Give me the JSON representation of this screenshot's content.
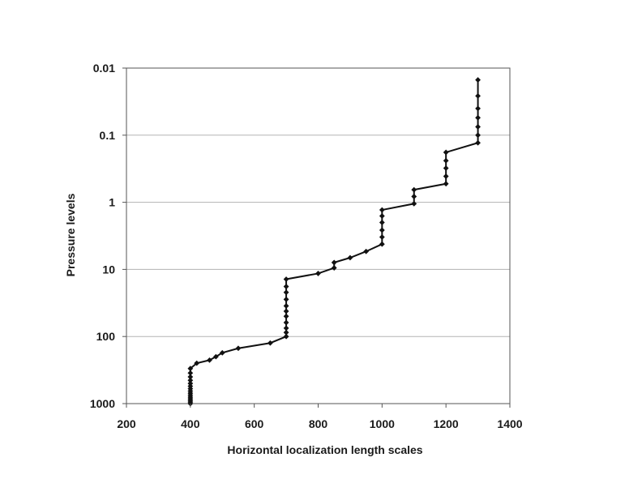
{
  "chart_data": {
    "type": "line",
    "title": "",
    "xlabel": "Horizontal localization length scales",
    "ylabel": "Pressure levels",
    "xlim": [
      200,
      1400
    ],
    "ylim": [
      1000,
      0.01
    ],
    "y_scale": "log",
    "y_inverted": true,
    "grid": "horizontal",
    "legend": "none",
    "x_ticks": [
      "200",
      "400",
      "600",
      "800",
      "1000",
      "1200",
      "1400"
    ],
    "y_ticks": [
      "0.01",
      "0.1",
      "1",
      "10",
      "100",
      "1000"
    ],
    "series": [
      {
        "color": "#111111",
        "marker": "diamond",
        "points": [
          [
            400,
            1000
          ],
          [
            400,
            950
          ],
          [
            400,
            900
          ],
          [
            400,
            850
          ],
          [
            400,
            800
          ],
          [
            400,
            750
          ],
          [
            400,
            700
          ],
          [
            400,
            650
          ],
          [
            400,
            600
          ],
          [
            400,
            550
          ],
          [
            400,
            500
          ],
          [
            400,
            450
          ],
          [
            400,
            400
          ],
          [
            400,
            350
          ],
          [
            400,
            300
          ],
          [
            420,
            250
          ],
          [
            460,
            225
          ],
          [
            480,
            200
          ],
          [
            500,
            175
          ],
          [
            550,
            150
          ],
          [
            650,
            125
          ],
          [
            700,
            100
          ],
          [
            700,
            87
          ],
          [
            700,
            75
          ],
          [
            700,
            62
          ],
          [
            700,
            50
          ],
          [
            700,
            42
          ],
          [
            700,
            35
          ],
          [
            700,
            28
          ],
          [
            700,
            22
          ],
          [
            700,
            18
          ],
          [
            700,
            14
          ],
          [
            800,
            11.5
          ],
          [
            850,
            9.5
          ],
          [
            850,
            7.9
          ],
          [
            900,
            6.7
          ],
          [
            950,
            5.4
          ],
          [
            1000,
            4.2
          ],
          [
            1000,
            3.3
          ],
          [
            1000,
            2.6
          ],
          [
            1000,
            2.0
          ],
          [
            1000,
            1.6
          ],
          [
            1000,
            1.3
          ],
          [
            1100,
            1.05
          ],
          [
            1100,
            0.82
          ],
          [
            1100,
            0.65
          ],
          [
            1200,
            0.53
          ],
          [
            1200,
            0.41
          ],
          [
            1200,
            0.31
          ],
          [
            1200,
            0.24
          ],
          [
            1200,
            0.18
          ],
          [
            1300,
            0.13
          ],
          [
            1300,
            0.1
          ],
          [
            1300,
            0.075
          ],
          [
            1300,
            0.055
          ],
          [
            1300,
            0.04
          ],
          [
            1300,
            0.026
          ],
          [
            1300,
            0.015
          ]
        ]
      }
    ]
  }
}
